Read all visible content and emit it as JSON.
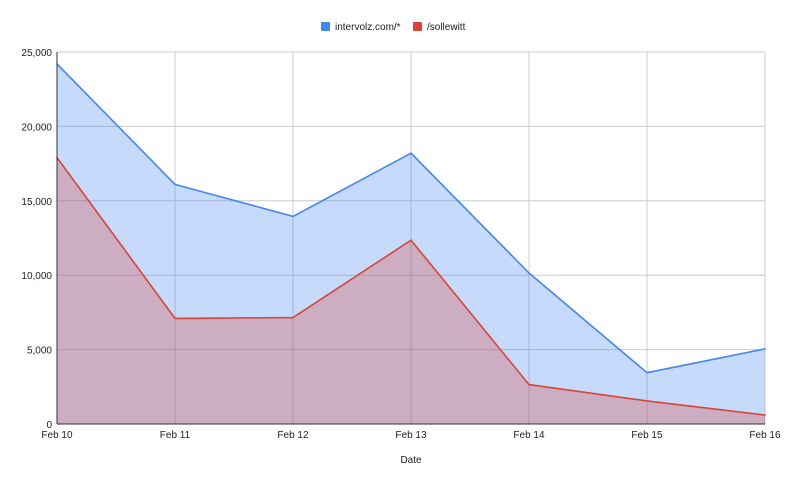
{
  "chart_data": {
    "type": "area",
    "categories": [
      "Feb 10",
      "Feb 11",
      "Feb 12",
      "Feb 13",
      "Feb 14",
      "Feb 15",
      "Feb 16"
    ],
    "series": [
      {
        "name": "intervolz.com/*",
        "color": "#4285f4",
        "values": [
          24200,
          16100,
          13950,
          18200,
          10150,
          3450,
          5050
        ]
      },
      {
        "name": "/sollewitt",
        "color": "#db4437",
        "values": [
          17900,
          7100,
          7150,
          12350,
          2650,
          1550,
          600
        ]
      }
    ],
    "y_ticks": [
      "0",
      "5,000",
      "10,000",
      "15,000",
      "20,000",
      "25,000"
    ],
    "ylim": [
      0,
      25000
    ],
    "xlabel": "Date",
    "legend_position": "top",
    "grid": true
  }
}
